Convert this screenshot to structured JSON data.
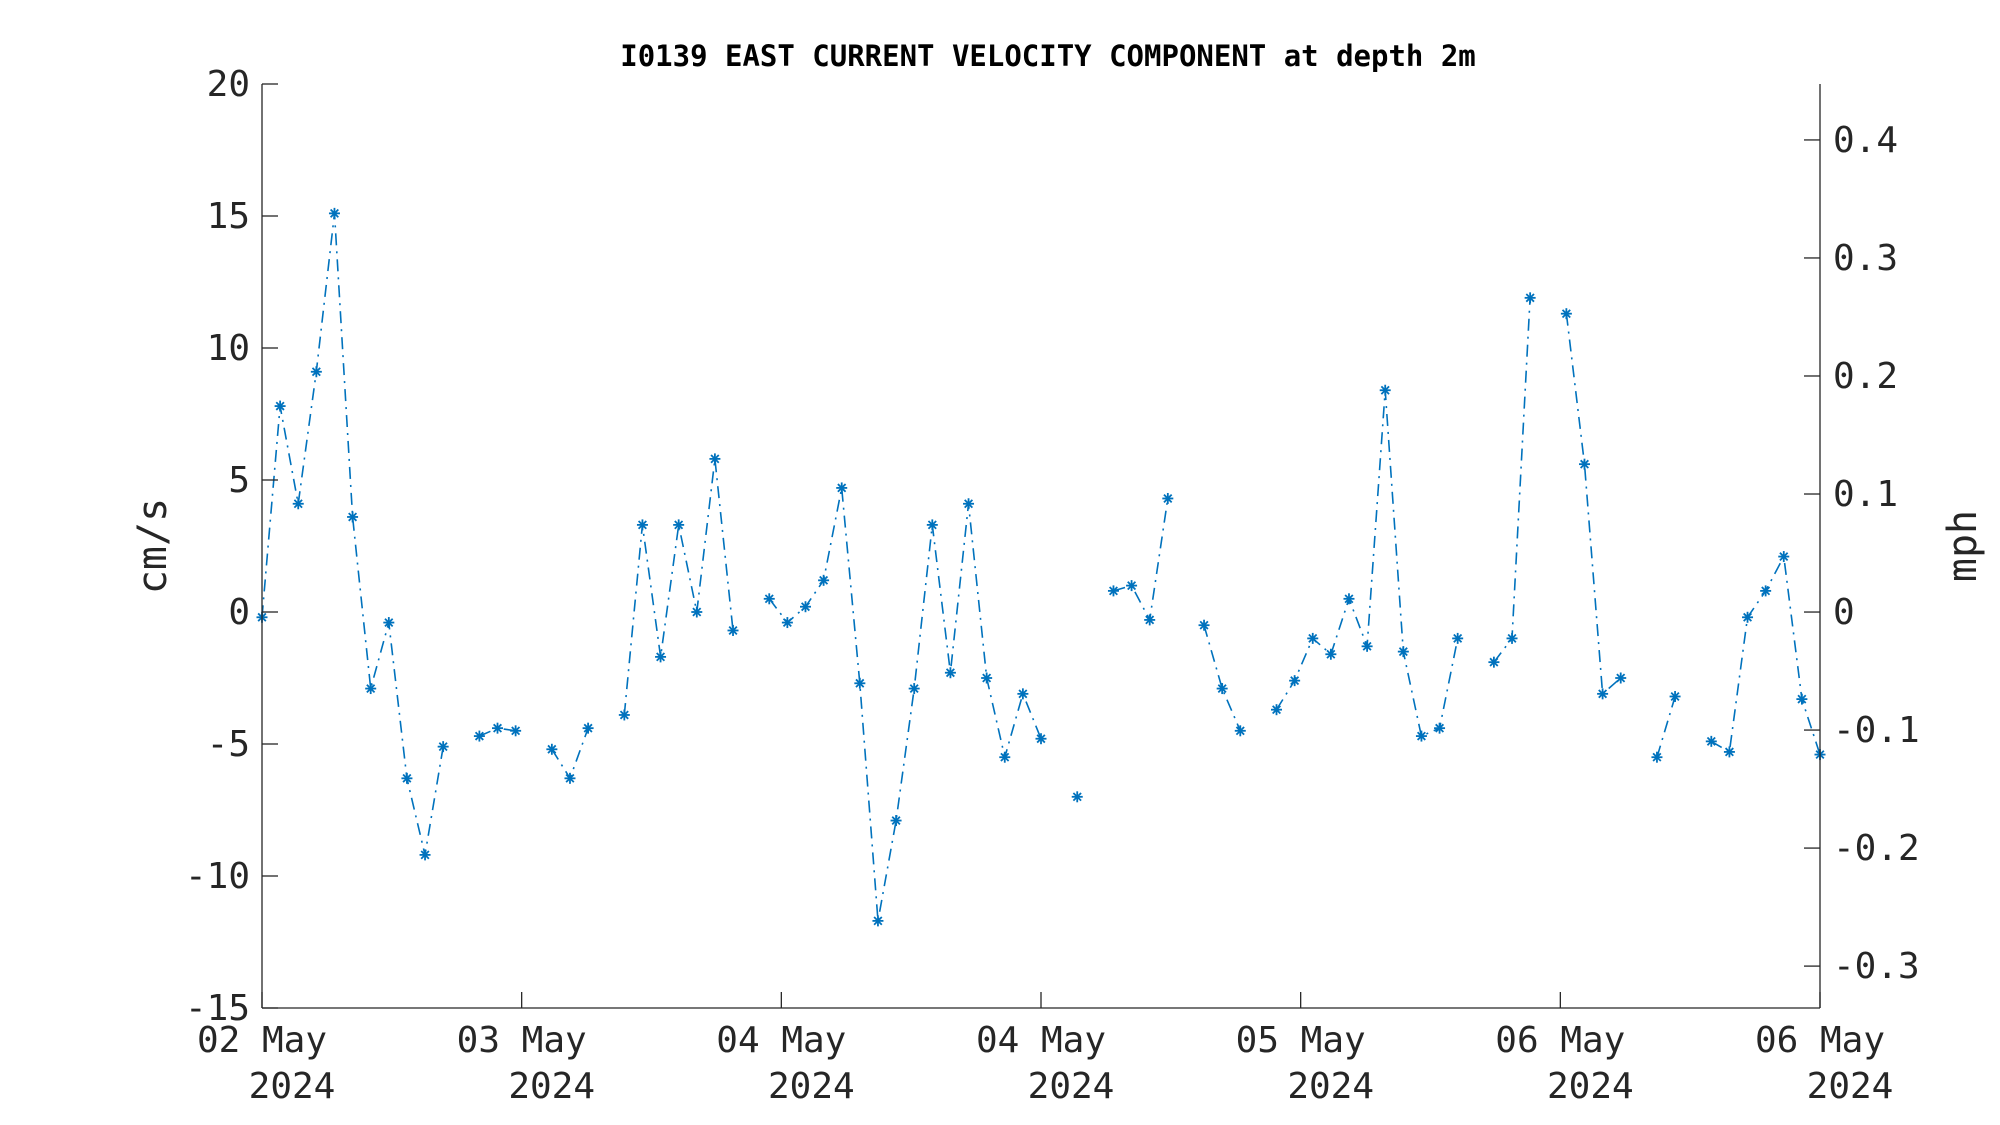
{
  "chart_data": {
    "type": "line",
    "title": "I0139 EAST CURRENT VELOCITY COMPONENT at depth 2m",
    "ylabel": "cm/s",
    "y2label": "mph",
    "ylim": [
      -15,
      20
    ],
    "y2lim": [
      -0.3355,
      0.4474
    ],
    "yticks": [
      "-15",
      "-10",
      "-5",
      "0",
      "5",
      "10",
      "15",
      "20"
    ],
    "y2ticks": [
      "-0.3",
      "-0.2",
      "-0.1",
      "0",
      "0.1",
      "0.2",
      "0.3",
      "0.4"
    ],
    "xticks": [
      {
        "day": "02 May",
        "year": "2024"
      },
      {
        "day": "03 May",
        "year": "2024"
      },
      {
        "day": "04 May",
        "year": "2024"
      },
      {
        "day": "04 May",
        "year": "2024"
      },
      {
        "day": "05 May",
        "year": "2024"
      },
      {
        "day": "06 May",
        "year": "2024"
      },
      {
        "day": "06 May",
        "year": "2024"
      }
    ],
    "marker": "*",
    "line_style": "dash-dot",
    "color": "#0072BD",
    "series": [
      {
        "values": [
          -0.2,
          7.8,
          4.1,
          9.1,
          15.1,
          3.6,
          -2.9,
          -0.4,
          -6.3,
          -9.2,
          -5.1,
          null,
          -4.7,
          -4.4,
          -4.5,
          null,
          -5.2,
          -6.3,
          -4.4,
          null,
          -3.9,
          3.3,
          -1.7,
          3.3,
          0.0,
          5.8,
          -0.7,
          null,
          0.5,
          -0.4,
          0.2,
          1.2,
          4.7,
          -2.7,
          -11.7,
          -7.9,
          -2.9,
          3.3,
          -2.3,
          4.1,
          -2.5,
          -5.5,
          -3.1,
          -4.8,
          null,
          -7.0,
          null,
          0.8,
          1.0,
          -0.3,
          4.3,
          null,
          -0.5,
          -2.9,
          -4.5,
          null,
          -3.7,
          -2.6,
          -1.0,
          -1.6,
          0.5,
          -1.3,
          8.4,
          -1.5,
          -4.7,
          -4.4,
          -1.0,
          null,
          -1.9,
          -1.0,
          11.9,
          null,
          11.3,
          5.6,
          -3.1,
          -2.5,
          null,
          -5.5,
          -3.2,
          null,
          -4.9,
          -5.3,
          -0.2,
          0.8,
          2.1,
          -3.3,
          -5.4
        ]
      }
    ]
  }
}
